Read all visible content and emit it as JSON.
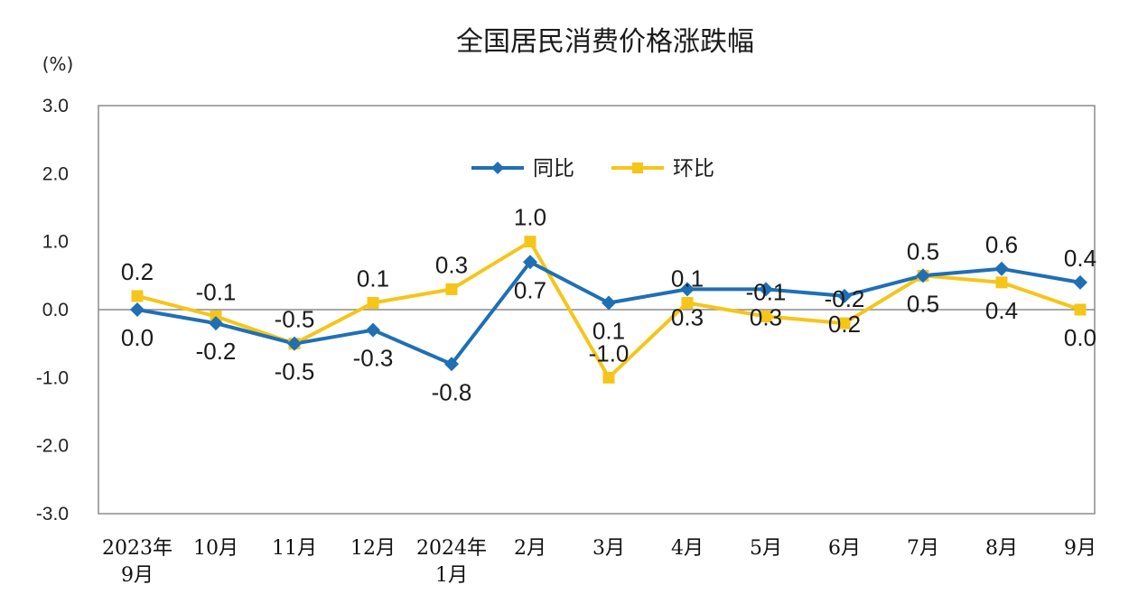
{
  "chart_data": {
    "type": "line",
    "title": "全国居民消费价格涨跌幅",
    "ylabel": "(%)",
    "xlabel": "",
    "ylim": [
      -3.0,
      3.0
    ],
    "yticks": [
      "3.0",
      "2.0",
      "1.0",
      "0.0",
      "-1.0",
      "-2.0",
      "-3.0"
    ],
    "categories": [
      [
        "2023年",
        "9月"
      ],
      [
        "10月"
      ],
      [
        "11月"
      ],
      [
        "12月"
      ],
      [
        "2024年",
        "1月"
      ],
      [
        "2月"
      ],
      [
        "3月"
      ],
      [
        "4月"
      ],
      [
        "5月"
      ],
      [
        "6月"
      ],
      [
        "7月"
      ],
      [
        "8月"
      ],
      [
        "9月"
      ]
    ],
    "series": [
      {
        "name": "同比",
        "color": "#1f6fb5",
        "marker": "diamond",
        "values": [
          0.0,
          -0.2,
          -0.5,
          -0.3,
          -0.8,
          0.7,
          0.1,
          0.3,
          0.3,
          0.2,
          0.5,
          0.6,
          0.4
        ],
        "labels": [
          "0.0",
          "-0.2",
          "-0.5",
          "-0.3",
          "-0.8",
          "0.7",
          "0.1",
          "0.3",
          "0.3",
          "0.2",
          "0.5",
          "0.6",
          "0.4"
        ]
      },
      {
        "name": "环比",
        "color": "#f5c518",
        "marker": "square",
        "values": [
          0.2,
          -0.1,
          -0.5,
          0.1,
          0.3,
          1.0,
          -1.0,
          0.1,
          -0.1,
          -0.2,
          0.5,
          0.4,
          0.0
        ],
        "labels": [
          "0.2",
          "-0.1",
          "-0.5",
          "0.1",
          "0.3",
          "1.0",
          "-1.0",
          "0.1",
          "-0.1",
          "-0.2",
          "0.5",
          "0.4",
          "0.0"
        ]
      }
    ],
    "legend": "top-center inside plot",
    "grid": false
  }
}
